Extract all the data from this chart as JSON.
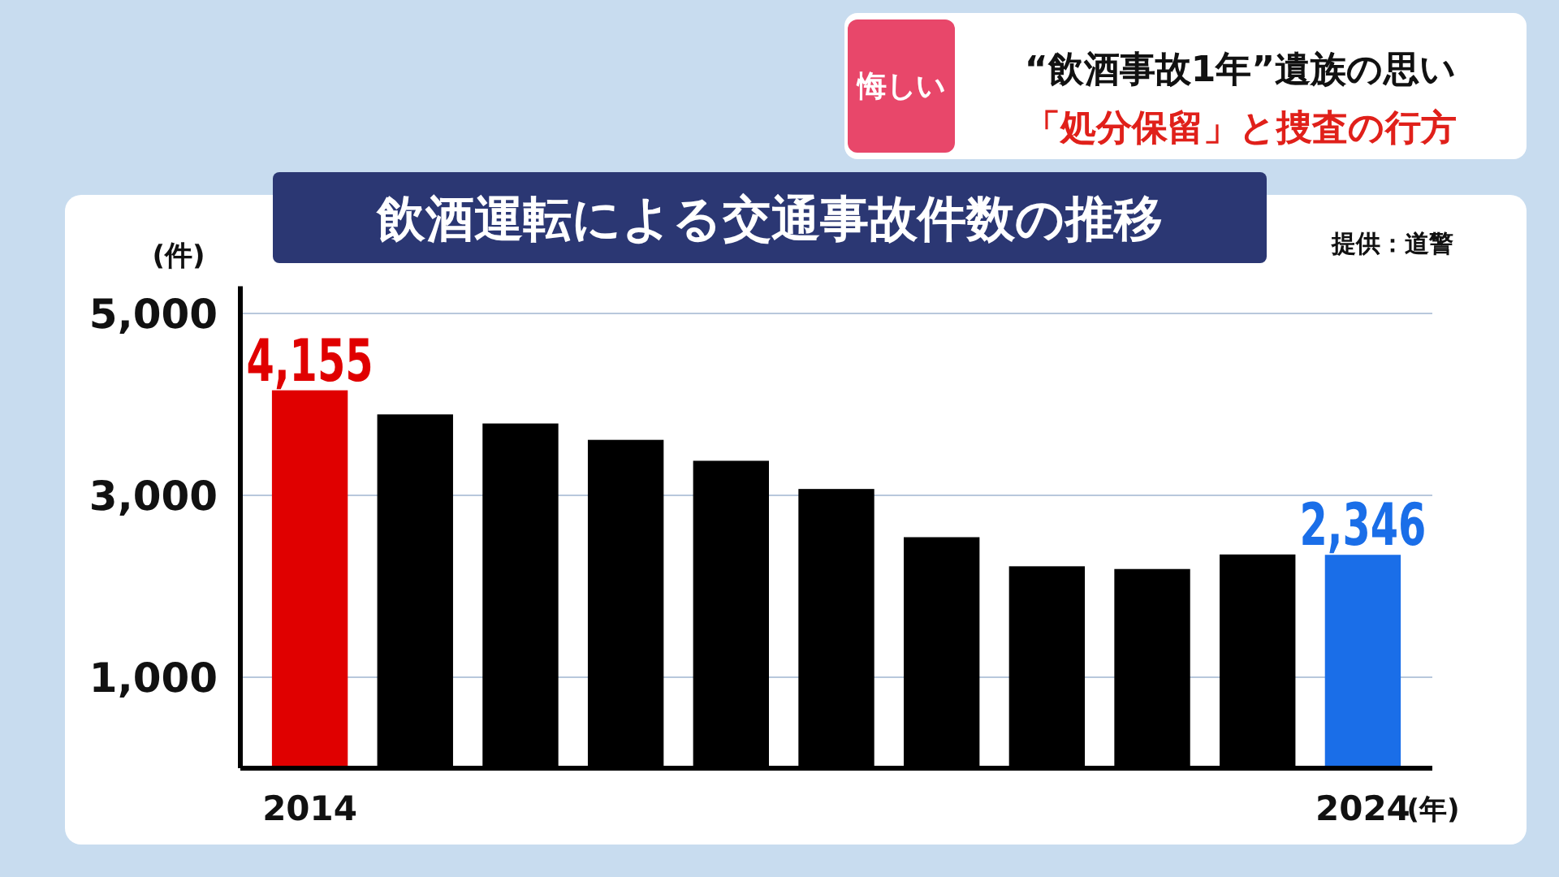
{
  "chart_data": {
    "type": "bar",
    "title": "飲酒運転による交通事故件数の推移",
    "xlabel": "(年)",
    "ylabel": "(件)",
    "categories": [
      "2014",
      null,
      null,
      null,
      null,
      null,
      null,
      null,
      null,
      null,
      "2024"
    ],
    "values": [
      4155,
      3890,
      3790,
      3610,
      3380,
      3070,
      2540,
      2220,
      2190,
      2350,
      2346
    ],
    "colors": [
      "#e00000",
      "#000000",
      "#000000",
      "#000000",
      "#000000",
      "#000000",
      "#000000",
      "#000000",
      "#000000",
      "#000000",
      "#1a6ee8"
    ],
    "value_labels": [
      "4,155",
      null,
      null,
      null,
      null,
      null,
      null,
      null,
      null,
      null,
      "2,346"
    ],
    "ylim": [
      0,
      5300
    ],
    "yticks": [
      {
        "value": 1000,
        "label": "1,000"
      },
      {
        "value": 3000,
        "label": "3,000"
      },
      {
        "value": 5000,
        "label": "5,000"
      }
    ],
    "grid": "y",
    "annotations": [
      "悔しい",
      "“飲酒事故1年”遺族の思い",
      "「処分保留」と捜査の行方",
      "提供：道警"
    ]
  }
}
